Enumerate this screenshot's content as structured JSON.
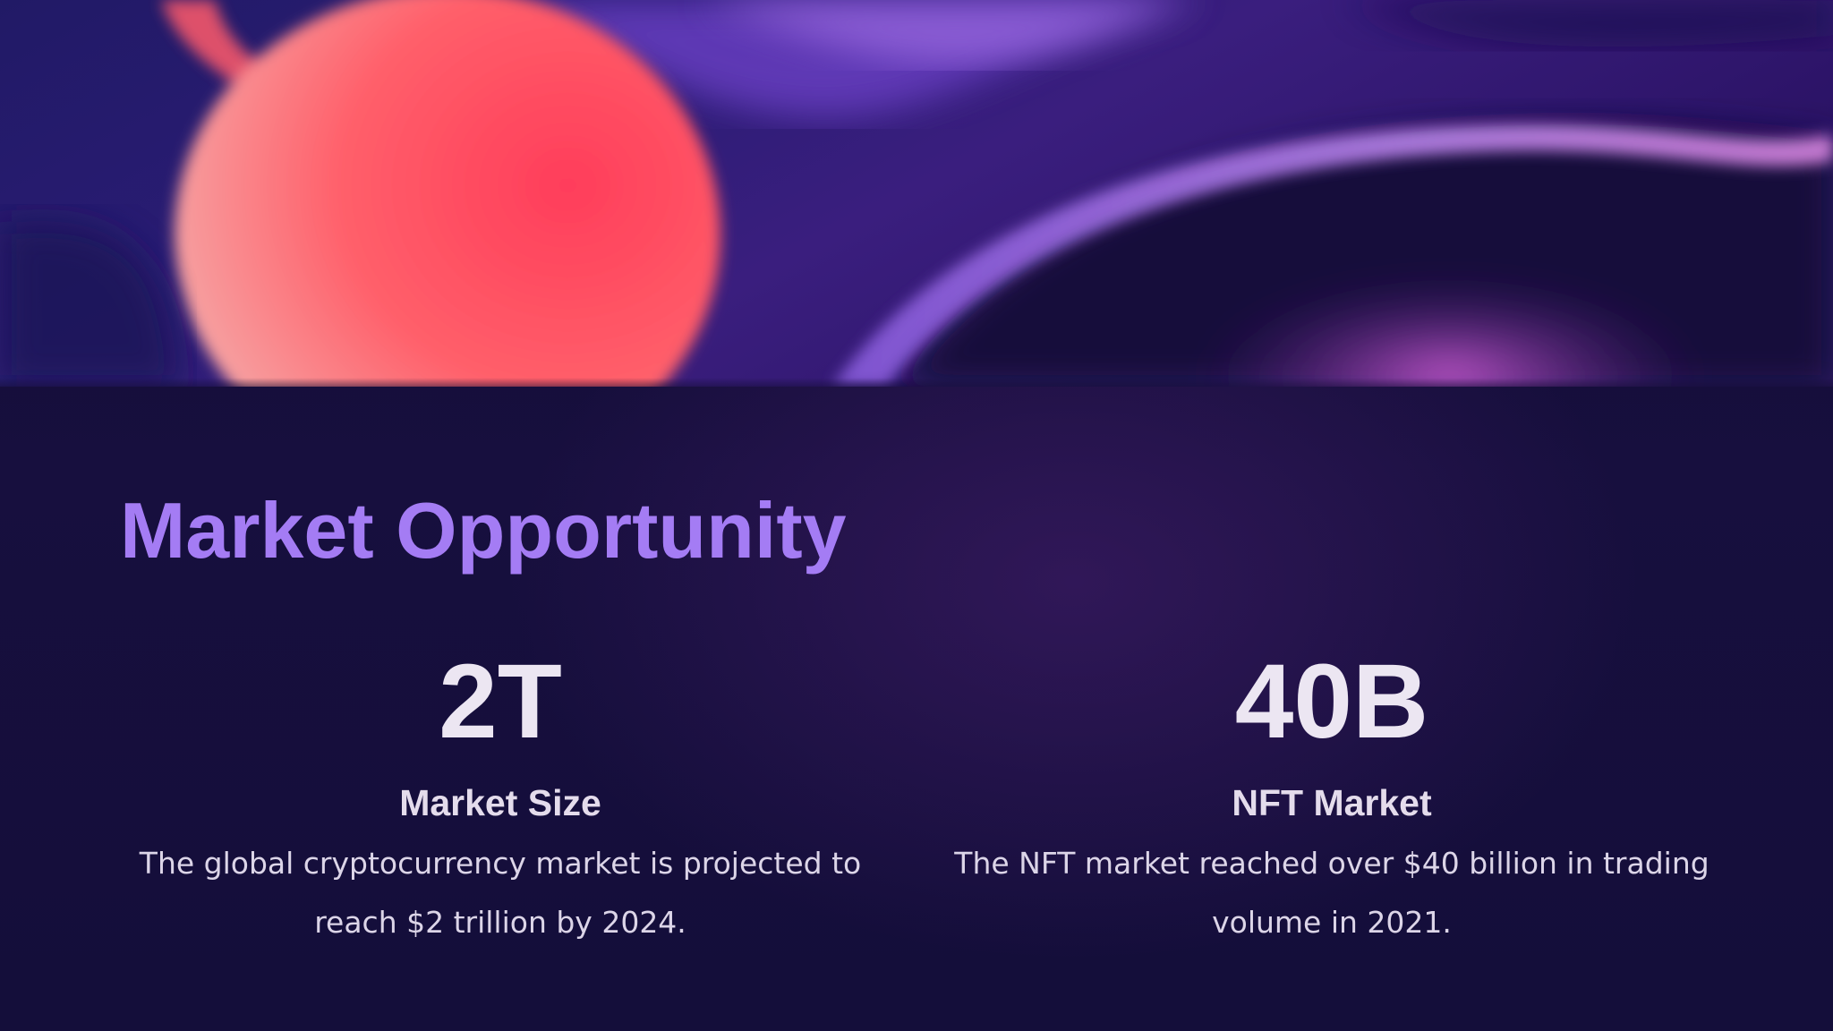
{
  "slide": {
    "title": "Market Opportunity",
    "stats": [
      {
        "value": "2T",
        "label": "Market Size",
        "description": "The global cryptocurrency market is projected to reach $2 trillion by 2024."
      },
      {
        "value": "40B",
        "label": "NFT Market",
        "description": "The NFT market reached over $40 billion in trading volume in 2021."
      }
    ]
  },
  "colors": {
    "title": "#a47cf4",
    "background": "#140e3a",
    "accent_orb": "#ff4a5e",
    "text": "#ece6f2"
  }
}
